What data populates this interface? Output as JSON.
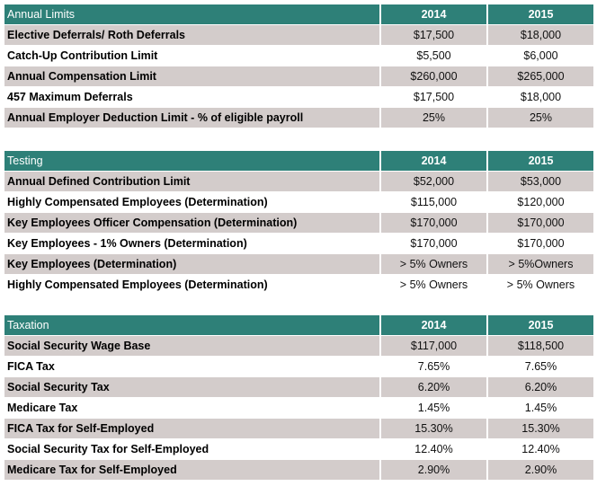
{
  "tables": [
    {
      "title": "Annual Limits",
      "year1": "2014",
      "year2": "2015",
      "rows": [
        {
          "label": "Elective Deferrals/ Roth Deferrals",
          "v1": "$17,500",
          "v2": "$18,000"
        },
        {
          "label": "Catch-Up Contribution Limit",
          "v1": "$5,500",
          "v2": "$6,000"
        },
        {
          "label": "Annual Compensation Limit",
          "v1": "$260,000",
          "v2": "$265,000"
        },
        {
          "label": "457 Maximum Deferrals",
          "v1": "$17,500",
          "v2": "$18,000"
        },
        {
          "label": "Annual Employer Deduction Limit - % of eligible payroll",
          "v1": "25%",
          "v2": "25%"
        }
      ]
    },
    {
      "title": "Testing",
      "year1": "2014",
      "year2": "2015",
      "rows": [
        {
          "label": "Annual Defined Contribution Limit",
          "v1": "$52,000",
          "v2": "$53,000"
        },
        {
          "label": "Highly Compensated Employees (Determination)",
          "v1": "$115,000",
          "v2": "$120,000"
        },
        {
          "label": "Key Employees Officer Compensation (Determination)",
          "v1": "$170,000",
          "v2": "$170,000"
        },
        {
          "label": "Key Employees - 1% Owners (Determination)",
          "v1": "$170,000",
          "v2": "$170,000"
        },
        {
          "label": "Key Employees (Determination)",
          "v1": "> 5% Owners",
          "v2": "> 5%Owners"
        },
        {
          "label": "Highly Compensated Employees (Determination)",
          "v1": "> 5% Owners",
          "v2": "> 5% Owners"
        }
      ]
    },
    {
      "title": "Taxation",
      "year1": "2014",
      "year2": "2015",
      "rows": [
        {
          "label": "Social Security Wage Base",
          "v1": "$117,000",
          "v2": "$118,500"
        },
        {
          "label": "FICA Tax",
          "v1": "7.65%",
          "v2": "7.65%"
        },
        {
          "label": "Social Security Tax",
          "v1": "6.20%",
          "v2": "6.20%"
        },
        {
          "label": "Medicare Tax",
          "v1": "1.45%",
          "v2": "1.45%"
        },
        {
          "label": "FICA Tax for Self-Employed",
          "v1": "15.30%",
          "v2": "15.30%"
        },
        {
          "label": "Social Security Tax for Self-Employed",
          "v1": "12.40%",
          "v2": "12.40%"
        },
        {
          "label": "Medicare Tax for Self-Employed",
          "v1": "2.90%",
          "v2": "2.90%"
        }
      ]
    }
  ],
  "colors": {
    "header_bg": "#2e8078",
    "odd_row_bg": "#d3cccb",
    "even_row_bg": "#ffffff"
  }
}
